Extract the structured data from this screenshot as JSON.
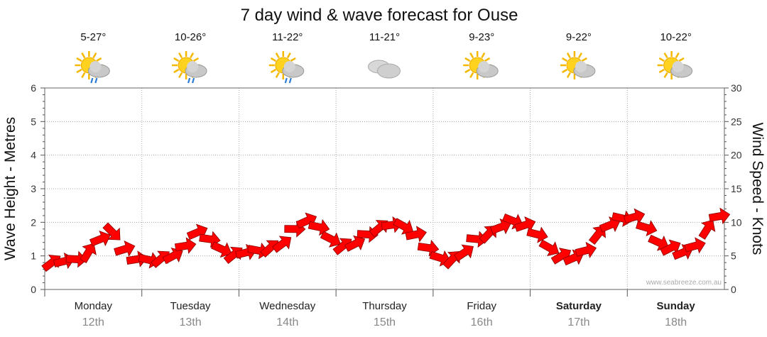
{
  "title": "7 day wind & wave forecast for Ouse",
  "credit": "www.seabreeze.com.au",
  "chart_data": {
    "type": "line",
    "y_left": {
      "label": "Wave Height - Metres",
      "ticks": [
        "0",
        "1",
        "2",
        "3",
        "4",
        "5",
        "6"
      ],
      "range": [
        0,
        6
      ]
    },
    "y_right": {
      "label": "Wind Speed - Knots",
      "ticks": [
        "0",
        "5",
        "10",
        "15",
        "20",
        "25",
        "30"
      ],
      "range": [
        0,
        30
      ]
    },
    "grid": true,
    "days": [
      {
        "day": "Monday",
        "date": "12th",
        "temp": "5-27°",
        "weather": "partly-cloudy-showers",
        "bold": false
      },
      {
        "day": "Tuesday",
        "date": "13th",
        "temp": "10-26°",
        "weather": "partly-cloudy-showers",
        "bold": false
      },
      {
        "day": "Wednesday",
        "date": "14th",
        "temp": "11-22°",
        "weather": "partly-cloudy-showers",
        "bold": false
      },
      {
        "day": "Thursday",
        "date": "15th",
        "temp": "11-21°",
        "weather": "cloudy",
        "bold": false
      },
      {
        "day": "Friday",
        "date": "16th",
        "temp": "9-23°",
        "weather": "partly-cloudy",
        "bold": false
      },
      {
        "day": "Saturday",
        "date": "17th",
        "temp": "9-22°",
        "weather": "partly-cloudy",
        "bold": true
      },
      {
        "day": "Sunday",
        "date": "18th",
        "temp": "10-22°",
        "weather": "partly-cloudy",
        "bold": true
      }
    ],
    "wind_series": {
      "name": "Wind Speed",
      "color": "#ff0000",
      "x_hours": [
        0,
        3,
        6,
        9,
        12,
        15,
        18,
        21,
        24,
        27,
        30,
        33,
        36,
        39,
        42,
        45,
        48,
        51,
        54,
        57,
        60,
        63,
        66,
        69,
        72,
        75,
        78,
        81,
        84,
        87,
        90,
        93,
        96,
        99,
        102,
        105,
        108,
        111,
        114,
        117,
        120,
        123,
        126,
        129,
        132,
        135,
        138,
        141,
        144,
        147,
        150,
        153,
        156,
        159,
        162,
        165
      ],
      "knots": [
        4.0,
        4.2,
        4.5,
        5.5,
        7.5,
        8.5,
        6,
        4.5,
        4.4,
        4.6,
        5.0,
        6.5,
        8.5,
        7.5,
        6.0,
        5.2,
        5.5,
        5.8,
        6.2,
        6.8,
        9.0,
        10.2,
        9.3,
        7.5,
        6.5,
        6.8,
        8.2,
        9.2,
        9.6,
        9.4,
        8.2,
        6.2,
        4.7,
        4.5,
        5.5,
        7.5,
        8.3,
        9.3,
        10.2,
        9.6,
        8.2,
        6.2,
        5.0,
        4.7,
        5.8,
        8.2,
        9.6,
        10.6,
        10.8,
        9.2,
        7.0,
        6.2,
        5.5,
        6.5,
        9.0,
        10.9
      ]
    }
  }
}
